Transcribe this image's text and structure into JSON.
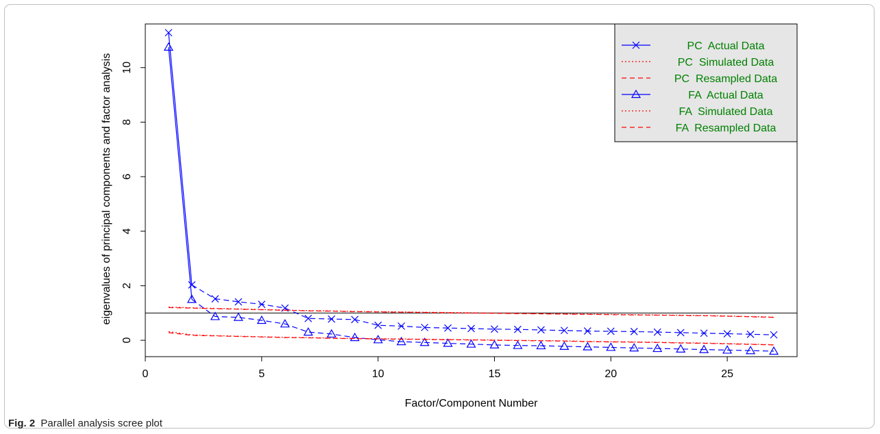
{
  "caption": {
    "label": "Fig. 2",
    "text": "Parallel analysis scree plot"
  },
  "chart_data": {
    "type": "line",
    "title": "",
    "xlabel": "Factor/Component Number",
    "ylabel": "eigenvalues of principal components and factor analysis",
    "xlim": [
      0,
      28
    ],
    "ylim": [
      -0.6,
      11.6
    ],
    "xticks": [
      0,
      5,
      10,
      15,
      20,
      25
    ],
    "yticks": [
      0,
      2,
      4,
      6,
      8,
      10
    ],
    "reference_line_y": 1,
    "legend_position": "top-right",
    "x": [
      1,
      2,
      3,
      4,
      5,
      6,
      7,
      8,
      9,
      10,
      11,
      12,
      13,
      14,
      15,
      16,
      17,
      18,
      19,
      20,
      21,
      22,
      23,
      24,
      25,
      26,
      27
    ],
    "series": [
      {
        "name": "PC  Actual Data",
        "color": "#0000ff",
        "marker": "x",
        "line": "solid-then-dashed",
        "values": [
          11.28,
          2.03,
          1.52,
          1.41,
          1.32,
          1.18,
          0.8,
          0.78,
          0.76,
          0.55,
          0.52,
          0.47,
          0.45,
          0.43,
          0.41,
          0.4,
          0.38,
          0.36,
          0.34,
          0.33,
          0.32,
          0.3,
          0.28,
          0.26,
          0.24,
          0.22,
          0.2
        ]
      },
      {
        "name": "PC  Simulated Data",
        "color": "#ff0000",
        "marker": "none",
        "line": "dotted",
        "values": [
          1.22,
          1.19,
          1.17,
          1.15,
          1.13,
          1.11,
          1.09,
          1.08,
          1.06,
          1.05,
          1.04,
          1.03,
          1.02,
          1.01,
          1.0,
          0.99,
          0.98,
          0.97,
          0.96,
          0.95,
          0.94,
          0.93,
          0.92,
          0.91,
          0.89,
          0.87,
          0.85
        ]
      },
      {
        "name": "PC  Resampled Data",
        "color": "#ff0000",
        "marker": "none",
        "line": "dashed",
        "values": [
          1.2,
          1.18,
          1.16,
          1.14,
          1.12,
          1.1,
          1.08,
          1.07,
          1.05,
          1.04,
          1.03,
          1.02,
          1.01,
          1.0,
          0.99,
          0.98,
          0.97,
          0.96,
          0.95,
          0.94,
          0.93,
          0.92,
          0.91,
          0.9,
          0.88,
          0.86,
          0.84
        ]
      },
      {
        "name": "FA  Actual Data",
        "color": "#0000ff",
        "marker": "triangle",
        "line": "solid-then-dashed",
        "values": [
          10.75,
          1.5,
          0.87,
          0.84,
          0.73,
          0.6,
          0.3,
          0.23,
          0.1,
          0.02,
          -0.05,
          -0.08,
          -0.11,
          -0.14,
          -0.17,
          -0.19,
          -0.2,
          -0.22,
          -0.24,
          -0.26,
          -0.28,
          -0.3,
          -0.32,
          -0.34,
          -0.36,
          -0.38,
          -0.4
        ]
      },
      {
        "name": "FA  Simulated Data",
        "color": "#ff0000",
        "marker": "none",
        "line": "dotted",
        "values": [
          0.32,
          0.2,
          0.17,
          0.15,
          0.13,
          0.11,
          0.1,
          0.08,
          0.07,
          0.06,
          0.05,
          0.04,
          0.03,
          0.02,
          0.01,
          0.0,
          -0.01,
          -0.02,
          -0.04,
          -0.05,
          -0.06,
          -0.07,
          -0.09,
          -0.1,
          -0.12,
          -0.14,
          -0.16
        ]
      },
      {
        "name": "FA  Resampled Data",
        "color": "#ff0000",
        "marker": "none",
        "line": "dashed",
        "values": [
          0.28,
          0.18,
          0.16,
          0.14,
          0.12,
          0.1,
          0.09,
          0.07,
          0.06,
          0.05,
          0.04,
          0.03,
          0.02,
          0.01,
          0.0,
          -0.01,
          -0.02,
          -0.03,
          -0.05,
          -0.06,
          -0.07,
          -0.08,
          -0.1,
          -0.11,
          -0.13,
          -0.15,
          -0.17
        ]
      }
    ],
    "colors": {
      "legend_background": "#e6e6e6",
      "legend_text": "#008000",
      "axis": "#000000"
    }
  }
}
